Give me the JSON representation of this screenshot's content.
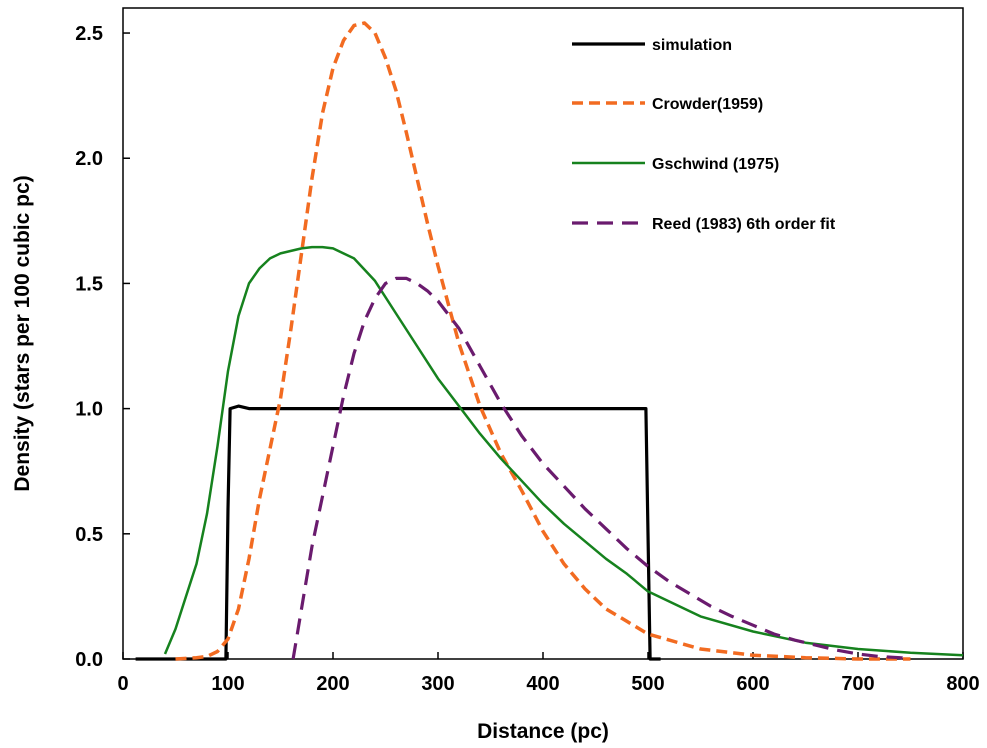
{
  "chart_data": {
    "type": "line",
    "title": "",
    "xlabel": "Distance (pc)",
    "ylabel": "Density (stars per 100 cubic pc)",
    "xlim": [
      0,
      800
    ],
    "ylim": [
      0,
      2.6
    ],
    "xticks": [
      "0",
      "100",
      "200",
      "300",
      "400",
      "500",
      "600",
      "700",
      "800"
    ],
    "yticks": [
      "0.0",
      "0.5",
      "1.0",
      "1.5",
      "2.0",
      "2.5"
    ],
    "grid": false,
    "legend_position": "top-right",
    "series": [
      {
        "name": "simulation",
        "color": "#000000",
        "style": "solid",
        "x": [
          12,
          98,
          100,
          102,
          110,
          120,
          200,
          300,
          400,
          498,
          500,
          502,
          512
        ],
        "y": [
          0.0,
          0.0,
          0.6,
          1.0,
          1.01,
          1.0,
          1.0,
          1.0,
          1.0,
          1.0,
          0.5,
          0.0,
          0.0
        ]
      },
      {
        "name": "Crowder(1959)",
        "color": "#F26B21",
        "style": "dashed",
        "x": [
          50,
          70,
          80,
          90,
          100,
          110,
          120,
          130,
          140,
          150,
          160,
          170,
          180,
          190,
          200,
          210,
          220,
          230,
          240,
          250,
          260,
          270,
          280,
          290,
          300,
          320,
          340,
          360,
          380,
          400,
          420,
          440,
          460,
          480,
          500,
          550,
          600,
          650,
          700,
          750
        ],
        "y": [
          0.0,
          0.005,
          0.01,
          0.03,
          0.08,
          0.2,
          0.4,
          0.64,
          0.84,
          1.04,
          1.32,
          1.62,
          1.92,
          2.18,
          2.36,
          2.47,
          2.53,
          2.54,
          2.5,
          2.4,
          2.27,
          2.1,
          1.92,
          1.74,
          1.57,
          1.26,
          1.01,
          0.82,
          0.67,
          0.51,
          0.38,
          0.28,
          0.2,
          0.15,
          0.1,
          0.04,
          0.015,
          0.005,
          0.0,
          0.0
        ]
      },
      {
        "name": "Gschwind (1975)",
        "color": "#16821E",
        "style": "solid",
        "x": [
          40,
          50,
          60,
          70,
          80,
          90,
          100,
          110,
          120,
          130,
          140,
          150,
          160,
          170,
          180,
          190,
          200,
          220,
          240,
          260,
          280,
          300,
          320,
          340,
          360,
          380,
          400,
          420,
          440,
          460,
          480,
          500,
          550,
          600,
          650,
          700,
          750,
          800
        ],
        "y": [
          0.02,
          0.12,
          0.25,
          0.38,
          0.58,
          0.85,
          1.15,
          1.37,
          1.5,
          1.56,
          1.6,
          1.62,
          1.63,
          1.64,
          1.645,
          1.645,
          1.64,
          1.6,
          1.51,
          1.38,
          1.25,
          1.12,
          1.01,
          0.9,
          0.8,
          0.71,
          0.62,
          0.54,
          0.47,
          0.4,
          0.34,
          0.27,
          0.17,
          0.11,
          0.065,
          0.04,
          0.025,
          0.015
        ]
      },
      {
        "name": "Reed (1983) 6th order fit",
        "color": "#6A1B6E",
        "style": "dashed",
        "x": [
          162,
          170,
          180,
          190,
          200,
          210,
          220,
          230,
          240,
          250,
          260,
          270,
          280,
          290,
          300,
          320,
          340,
          360,
          380,
          400,
          420,
          440,
          460,
          480,
          500,
          520,
          540,
          560,
          580,
          600,
          620,
          640,
          660,
          680,
          700,
          720,
          740,
          750
        ],
        "y": [
          0.0,
          0.2,
          0.45,
          0.65,
          0.85,
          1.05,
          1.22,
          1.35,
          1.44,
          1.5,
          1.52,
          1.52,
          1.5,
          1.47,
          1.43,
          1.32,
          1.17,
          1.02,
          0.89,
          0.78,
          0.69,
          0.6,
          0.52,
          0.44,
          0.37,
          0.31,
          0.26,
          0.21,
          0.17,
          0.135,
          0.1,
          0.075,
          0.055,
          0.035,
          0.02,
          0.01,
          0.005,
          0.0
        ]
      }
    ]
  }
}
